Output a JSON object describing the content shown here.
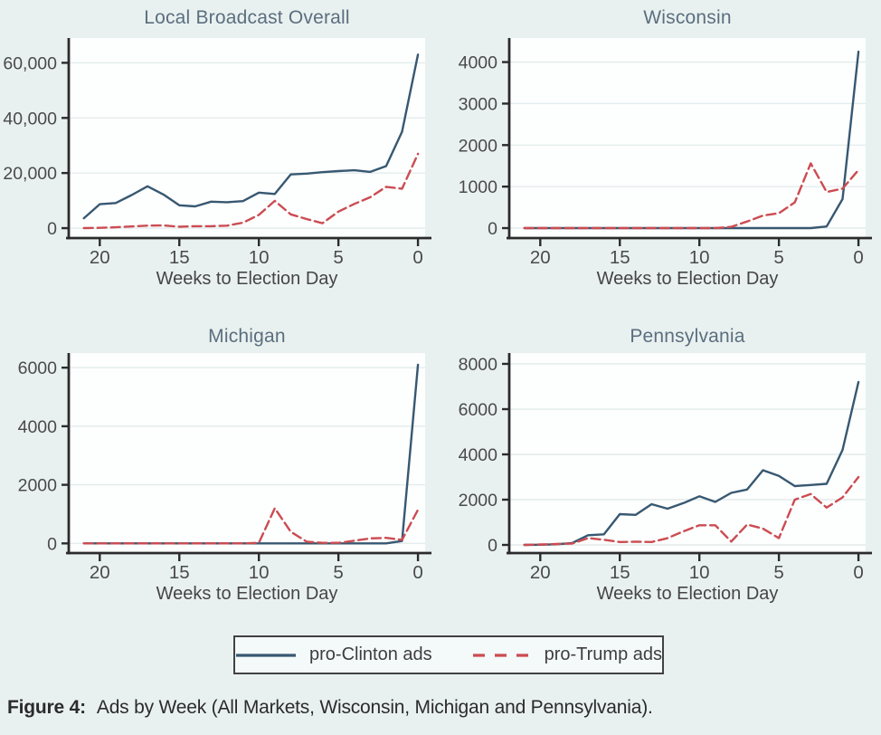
{
  "figure": {
    "caption_label": "Figure 4:",
    "caption_text": "Ads by Week (All Markets, Wisconsin, Michigan and Pennsylvania)."
  },
  "legend": {
    "position": "bottom",
    "items": [
      {
        "label": "pro-Clinton ads",
        "color": "#375871",
        "style": "solid"
      },
      {
        "label": "pro-Trump ads",
        "color": "#cb4c52",
        "style": "dashed"
      }
    ]
  },
  "colors": {
    "background": "#e9f1f0",
    "plot_background": "#fdfefe",
    "gridline": "#e3ecec",
    "axis": "#2b2b2b",
    "tick_label": "#4a4a4a",
    "panel_title": "#5b6e7f",
    "axis_title": "#454545",
    "pro_clinton": "#375871",
    "pro_trump": "#cb4c52"
  },
  "chart_data": [
    {
      "type": "line",
      "title": "Local Broadcast Overall",
      "xlabel": "Weeks to Election Day",
      "x_reversed": true,
      "grid": true,
      "xlim": [
        21.95,
        -0.45
      ],
      "xticks": [
        20,
        15,
        10,
        5,
        0
      ],
      "ylim": [
        -3600,
        69000
      ],
      "yticks": [
        {
          "v": 0,
          "label": "0"
        },
        {
          "v": 20000,
          "label": "20,000"
        },
        {
          "v": 40000,
          "label": "40,000"
        },
        {
          "v": 60000,
          "label": "60,000"
        }
      ],
      "series": [
        {
          "name": "pro-Clinton ads",
          "color": "#375871",
          "dash": null,
          "points": [
            [
              21,
              3600
            ],
            [
              20,
              8700
            ],
            [
              19,
              9100
            ],
            [
              18,
              12000
            ],
            [
              17,
              15200
            ],
            [
              16,
              12200
            ],
            [
              15,
              8300
            ],
            [
              14,
              7900
            ],
            [
              13,
              9600
            ],
            [
              12,
              9400
            ],
            [
              11,
              9800
            ],
            [
              10,
              12900
            ],
            [
              9,
              12400
            ],
            [
              8,
              19500
            ],
            [
              7,
              19800
            ],
            [
              6,
              20300
            ],
            [
              5,
              20700
            ],
            [
              4,
              21000
            ],
            [
              3,
              20400
            ],
            [
              2,
              22500
            ],
            [
              1,
              35000
            ],
            [
              0,
              63000
            ]
          ]
        },
        {
          "name": "pro-Trump ads",
          "color": "#cb4c52",
          "dash": "10 5",
          "points": [
            [
              21,
              0
            ],
            [
              20,
              100
            ],
            [
              19,
              300
            ],
            [
              18,
              600
            ],
            [
              17,
              900
            ],
            [
              16,
              1000
            ],
            [
              15,
              500
            ],
            [
              14,
              700
            ],
            [
              13,
              700
            ],
            [
              12,
              900
            ],
            [
              11,
              2000
            ],
            [
              10,
              4800
            ],
            [
              9,
              9900
            ],
            [
              8,
              5000
            ],
            [
              7,
              3300
            ],
            [
              6,
              1800
            ],
            [
              5,
              6000
            ],
            [
              4,
              8800
            ],
            [
              3,
              11200
            ],
            [
              2,
              15000
            ],
            [
              1,
              14300
            ],
            [
              0,
              27000
            ]
          ]
        }
      ]
    },
    {
      "type": "line",
      "title": "Wisconsin",
      "xlabel": "Weeks to Election Day",
      "x_reversed": true,
      "grid": true,
      "xlim": [
        21.95,
        -0.45
      ],
      "xticks": [
        20,
        15,
        10,
        5,
        0
      ],
      "ylim": [
        -240,
        4580
      ],
      "yticks": [
        {
          "v": 0,
          "label": "0"
        },
        {
          "v": 1000,
          "label": "1000"
        },
        {
          "v": 2000,
          "label": "2000"
        },
        {
          "v": 3000,
          "label": "3000"
        },
        {
          "v": 4000,
          "label": "4000"
        }
      ],
      "series": [
        {
          "name": "pro-Clinton ads",
          "color": "#375871",
          "dash": null,
          "points": [
            [
              21,
              0
            ],
            [
              20,
              0
            ],
            [
              19,
              0
            ],
            [
              18,
              0
            ],
            [
              17,
              0
            ],
            [
              16,
              0
            ],
            [
              15,
              0
            ],
            [
              14,
              0
            ],
            [
              13,
              0
            ],
            [
              12,
              0
            ],
            [
              11,
              0
            ],
            [
              10,
              0
            ],
            [
              9,
              0
            ],
            [
              8,
              0
            ],
            [
              7,
              0
            ],
            [
              6,
              0
            ],
            [
              5,
              0
            ],
            [
              4,
              0
            ],
            [
              3,
              0
            ],
            [
              2,
              40
            ],
            [
              1,
              700
            ],
            [
              0,
              4250
            ]
          ]
        },
        {
          "name": "pro-Trump ads",
          "color": "#cb4c52",
          "dash": "10 5",
          "points": [
            [
              21,
              0
            ],
            [
              20,
              0
            ],
            [
              19,
              0
            ],
            [
              18,
              0
            ],
            [
              17,
              0
            ],
            [
              16,
              0
            ],
            [
              15,
              0
            ],
            [
              14,
              0
            ],
            [
              13,
              0
            ],
            [
              12,
              0
            ],
            [
              11,
              0
            ],
            [
              10,
              0
            ],
            [
              9,
              0
            ],
            [
              8,
              30
            ],
            [
              7,
              160
            ],
            [
              6,
              300
            ],
            [
              5,
              360
            ],
            [
              4,
              620
            ],
            [
              3,
              1560
            ],
            [
              2,
              870
            ],
            [
              1,
              950
            ],
            [
              0,
              1400
            ]
          ]
        }
      ]
    },
    {
      "type": "line",
      "title": "Michigan",
      "xlabel": "Weeks to Election Day",
      "x_reversed": true,
      "grid": true,
      "xlim": [
        21.95,
        -0.45
      ],
      "xticks": [
        20,
        15,
        10,
        5,
        0
      ],
      "ylim": [
        -330,
        6500
      ],
      "yticks": [
        {
          "v": 0,
          "label": "0"
        },
        {
          "v": 2000,
          "label": "2000"
        },
        {
          "v": 4000,
          "label": "4000"
        },
        {
          "v": 6000,
          "label": "6000"
        }
      ],
      "series": [
        {
          "name": "pro-Clinton ads",
          "color": "#375871",
          "dash": null,
          "points": [
            [
              21,
              0
            ],
            [
              20,
              0
            ],
            [
              19,
              0
            ],
            [
              18,
              0
            ],
            [
              17,
              0
            ],
            [
              16,
              0
            ],
            [
              15,
              0
            ],
            [
              14,
              0
            ],
            [
              13,
              0
            ],
            [
              12,
              0
            ],
            [
              11,
              0
            ],
            [
              10,
              0
            ],
            [
              9,
              0
            ],
            [
              8,
              0
            ],
            [
              7,
              0
            ],
            [
              6,
              0
            ],
            [
              5,
              0
            ],
            [
              4,
              0
            ],
            [
              3,
              0
            ],
            [
              2,
              0
            ],
            [
              1,
              80
            ],
            [
              0,
              6100
            ]
          ]
        },
        {
          "name": "pro-Trump ads",
          "color": "#cb4c52",
          "dash": "10 5",
          "points": [
            [
              21,
              0
            ],
            [
              20,
              0
            ],
            [
              19,
              0
            ],
            [
              18,
              0
            ],
            [
              17,
              0
            ],
            [
              16,
              0
            ],
            [
              15,
              0
            ],
            [
              14,
              0
            ],
            [
              13,
              0
            ],
            [
              12,
              0
            ],
            [
              11,
              0
            ],
            [
              10,
              20
            ],
            [
              9,
              1200
            ],
            [
              8,
              400
            ],
            [
              7,
              60
            ],
            [
              6,
              20
            ],
            [
              5,
              20
            ],
            [
              4,
              90
            ],
            [
              3,
              170
            ],
            [
              2,
              190
            ],
            [
              1,
              120
            ],
            [
              0,
              1150
            ]
          ]
        }
      ]
    },
    {
      "type": "line",
      "title": "Pennsylvania",
      "xlabel": "Weeks to Election Day",
      "x_reversed": true,
      "grid": true,
      "xlim": [
        21.95,
        -0.45
      ],
      "xticks": [
        20,
        15,
        10,
        5,
        0
      ],
      "ylim": [
        -360,
        8480
      ],
      "yticks": [
        {
          "v": 0,
          "label": "0"
        },
        {
          "v": 2000,
          "label": "2000"
        },
        {
          "v": 4000,
          "label": "4000"
        },
        {
          "v": 6000,
          "label": "6000"
        },
        {
          "v": 8000,
          "label": "8000"
        }
      ],
      "series": [
        {
          "name": "pro-Clinton ads",
          "color": "#375871",
          "dash": null,
          "points": [
            [
              21,
              0
            ],
            [
              20,
              10
            ],
            [
              19,
              30
            ],
            [
              18,
              80
            ],
            [
              17,
              430
            ],
            [
              16,
              470
            ],
            [
              15,
              1360
            ],
            [
              14,
              1330
            ],
            [
              13,
              1800
            ],
            [
              12,
              1600
            ],
            [
              11,
              1850
            ],
            [
              10,
              2150
            ],
            [
              9,
              1900
            ],
            [
              8,
              2300
            ],
            [
              7,
              2450
            ],
            [
              6,
              3300
            ],
            [
              5,
              3050
            ],
            [
              4,
              2600
            ],
            [
              3,
              2650
            ],
            [
              2,
              2700
            ],
            [
              1,
              4200
            ],
            [
              0,
              7200
            ]
          ]
        },
        {
          "name": "pro-Trump ads",
          "color": "#cb4c52",
          "dash": "10 5",
          "points": [
            [
              21,
              0
            ],
            [
              20,
              20
            ],
            [
              19,
              40
            ],
            [
              18,
              60
            ],
            [
              17,
              300
            ],
            [
              16,
              230
            ],
            [
              15,
              130
            ],
            [
              14,
              140
            ],
            [
              13,
              130
            ],
            [
              12,
              300
            ],
            [
              11,
              600
            ],
            [
              10,
              870
            ],
            [
              9,
              870
            ],
            [
              8,
              150
            ],
            [
              7,
              900
            ],
            [
              6,
              720
            ],
            [
              5,
              300
            ],
            [
              4,
              2000
            ],
            [
              3,
              2250
            ],
            [
              2,
              1650
            ],
            [
              1,
              2100
            ],
            [
              0,
              3000
            ]
          ]
        }
      ]
    }
  ]
}
